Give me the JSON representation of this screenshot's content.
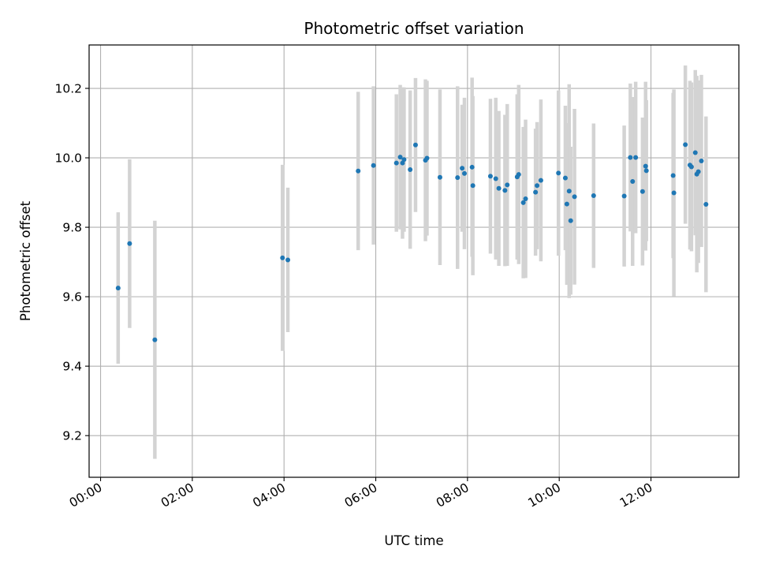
{
  "chart_data": {
    "type": "scatter",
    "title": "Photometric offset variation",
    "xlabel": "UTC time",
    "ylabel": "Photometric offset",
    "x_unit": "hours (UTC)",
    "xlim": [
      "-00:15",
      "13:55"
    ],
    "ylim": [
      9.08,
      10.325
    ],
    "x_ticks": [
      "00:00",
      "02:00",
      "04:00",
      "06:00",
      "08:00",
      "10:00",
      "12:00"
    ],
    "y_ticks": [
      "9.2",
      "9.4",
      "9.6",
      "9.8",
      "10.0",
      "10.2"
    ],
    "grid": true,
    "legend": "none",
    "colors": {
      "point": "#1f77b4",
      "errorbar": "#d3d3d3",
      "grid": "#b0b0b0"
    },
    "series": [
      {
        "x": [
          "00:23",
          "00:38",
          "01:11",
          "03:58",
          "04:05",
          "05:37",
          "05:57",
          "06:27",
          "06:32",
          "06:35",
          "06:37",
          "06:45",
          "06:52",
          "07:05",
          "07:07",
          "07:24",
          "07:47",
          "07:53",
          "07:56",
          "08:06",
          "08:07",
          "08:30",
          "08:37",
          "08:41",
          "08:49",
          "08:52",
          "09:05",
          "09:07",
          "09:13",
          "09:16",
          "09:29",
          "09:31",
          "09:36",
          "09:59",
          "10:08",
          "10:10",
          "10:13",
          "10:15",
          "10:20",
          "10:45",
          "11:25",
          "11:33",
          "11:36",
          "11:40",
          "11:49",
          "11:53",
          "11:54",
          "12:29",
          "12:30",
          "12:45",
          "12:51",
          "12:53",
          "12:58",
          "13:00",
          "13:02",
          "13:06",
          "13:12"
        ],
        "y": [
          9.625,
          9.753,
          9.476,
          9.712,
          9.706,
          9.962,
          9.978,
          9.985,
          10.002,
          9.985,
          9.995,
          9.966,
          10.037,
          9.993,
          9.999,
          9.944,
          9.943,
          9.97,
          9.955,
          9.973,
          9.92,
          9.947,
          9.94,
          9.912,
          9.906,
          9.922,
          9.945,
          9.952,
          9.871,
          9.882,
          9.901,
          9.92,
          9.935,
          9.956,
          9.942,
          9.867,
          9.904,
          9.819,
          9.888,
          9.891,
          9.89,
          10.001,
          9.932,
          10.001,
          9.903,
          9.976,
          9.963,
          9.949,
          9.899,
          10.038,
          9.979,
          9.974,
          10.015,
          9.953,
          9.96,
          9.991,
          9.866
        ],
        "yerr": [
          0.218,
          0.243,
          0.343,
          0.268,
          0.208,
          0.228,
          0.228,
          0.198,
          0.208,
          0.218,
          0.208,
          0.228,
          0.193,
          0.233,
          0.223,
          0.253,
          0.263,
          0.183,
          0.218,
          0.258,
          0.258,
          0.223,
          0.233,
          0.223,
          0.218,
          0.233,
          0.238,
          0.258,
          0.218,
          0.228,
          0.183,
          0.183,
          0.233,
          0.238,
          0.208,
          0.233,
          0.308,
          0.213,
          0.253,
          0.208,
          0.203,
          0.213,
          0.243,
          0.218,
          0.213,
          0.243,
          0.203,
          0.238,
          0.298,
          0.228,
          0.243,
          0.243,
          0.238,
          0.283,
          0.263,
          0.248,
          0.253
        ]
      }
    ]
  }
}
